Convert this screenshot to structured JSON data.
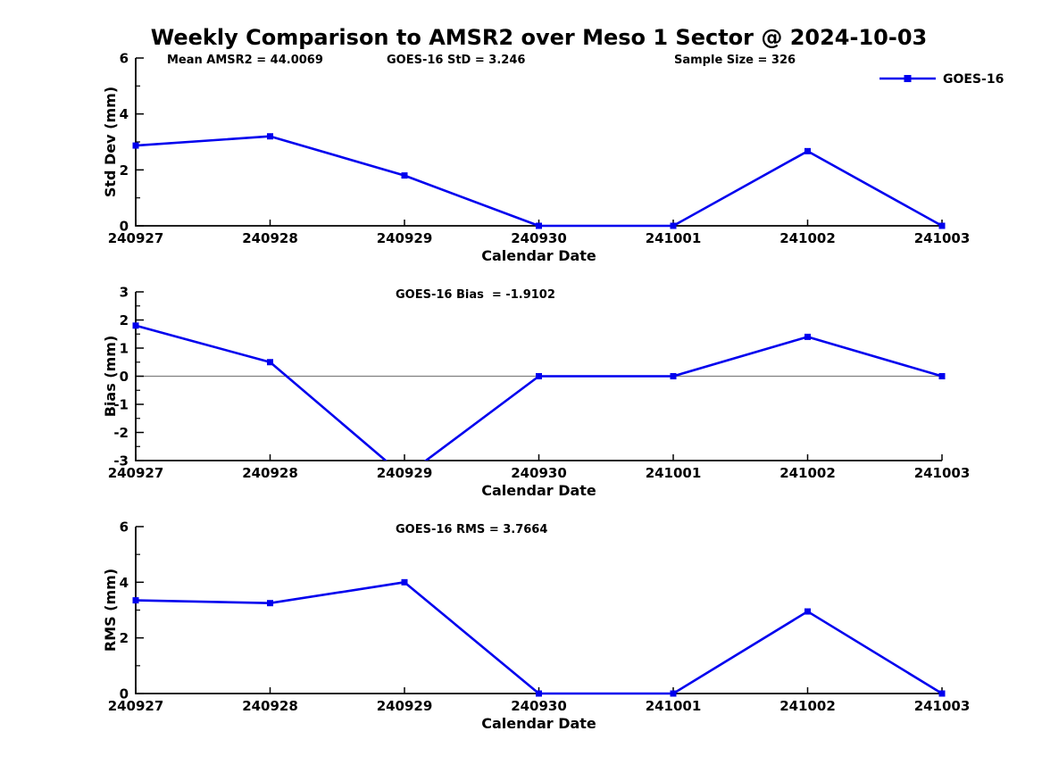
{
  "figure": {
    "title": "Weekly Comparison to AMSR2 over Meso 1 Sector @ 2024-10-03",
    "background_color": "#ffffff",
    "line_color": "#0000ee",
    "zero_line_color": "#808080",
    "axis_color": "#000000",
    "text_color": "#000000"
  },
  "legend": {
    "label": "GOES-16",
    "position": "top-right-outside"
  },
  "chart_data": [
    {
      "type": "line",
      "categories": [
        "240927",
        "240928",
        "240929",
        "240930",
        "241001",
        "241002",
        "241003"
      ],
      "series": [
        {
          "name": "GOES-16",
          "values": [
            2.87,
            3.2,
            1.8,
            0.0,
            0.0,
            2.67,
            0.0
          ]
        }
      ],
      "title": "",
      "xlabel": "Calendar Date",
      "ylabel": "Std Dev (mm)",
      "ylim": [
        0,
        6
      ],
      "yticks": [
        0,
        2,
        4,
        6
      ],
      "yticks_minor": [
        1,
        3,
        5
      ],
      "grid": false,
      "zero_line": false,
      "marker": "square",
      "annotations": [
        "Mean AMSR2 = 44.0069",
        "GOES-16 StD = 3.246",
        "Sample Size = 326"
      ],
      "legend_entries": [
        "GOES-16"
      ]
    },
    {
      "type": "line",
      "categories": [
        "240927",
        "240928",
        "240929",
        "240930",
        "241001",
        "241002",
        "241003"
      ],
      "series": [
        {
          "name": "GOES-16",
          "values": [
            1.8,
            0.5,
            -3.57,
            0.0,
            0.0,
            1.4,
            0.0
          ]
        }
      ],
      "title": "",
      "xlabel": "Calendar Date",
      "ylabel": "Bias (mm)",
      "ylim": [
        -3,
        3
      ],
      "yticks": [
        -3,
        -2,
        -1,
        0,
        1,
        2,
        3
      ],
      "yticks_minor": [
        -2.5,
        -1.5,
        -0.5,
        0.5,
        1.5,
        2.5
      ],
      "grid": false,
      "zero_line": true,
      "marker": "square",
      "annotations": [
        "GOES-16 Bias  = -1.9102"
      ],
      "legend_entries": []
    },
    {
      "type": "line",
      "categories": [
        "240927",
        "240928",
        "240929",
        "240930",
        "241001",
        "241002",
        "241003"
      ],
      "series": [
        {
          "name": "GOES-16",
          "values": [
            3.35,
            3.25,
            4.0,
            0.0,
            0.0,
            2.95,
            0.0
          ]
        }
      ],
      "title": "",
      "xlabel": "Calendar Date",
      "ylabel": "RMS (mm)",
      "ylim": [
        0,
        6
      ],
      "yticks": [
        0,
        2,
        4,
        6
      ],
      "yticks_minor": [
        1,
        3,
        5
      ],
      "grid": false,
      "zero_line": false,
      "marker": "square",
      "annotations": [
        "GOES-16 RMS = 3.7664"
      ],
      "legend_entries": []
    }
  ]
}
